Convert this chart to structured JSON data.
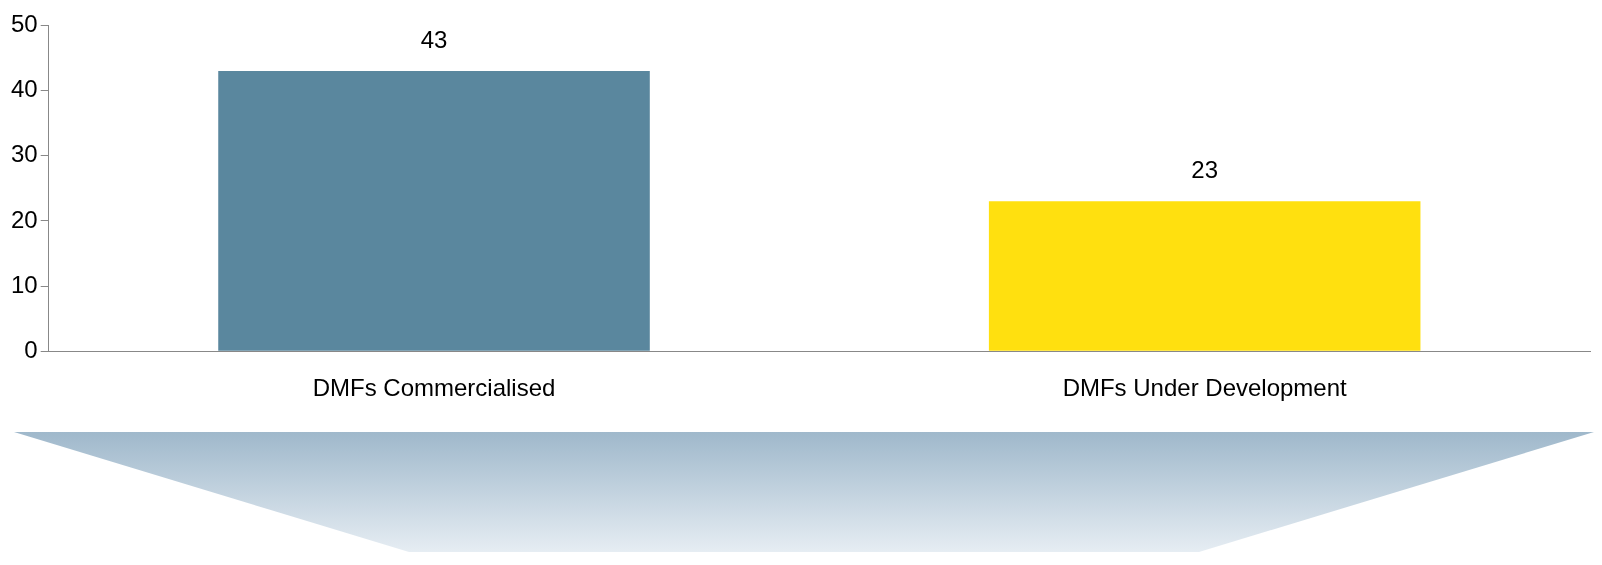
{
  "chart_data": {
    "type": "bar",
    "categories": [
      "DMFs Commercialised",
      "DMFs Under Development"
    ],
    "values": [
      43,
      23
    ],
    "colors": [
      "#5a879e",
      "#ffe00f"
    ],
    "ylim": [
      0,
      50
    ],
    "yticks": [
      0,
      10,
      20,
      30,
      40,
      50
    ],
    "grid": false,
    "legend": false,
    "data_labels": true
  }
}
